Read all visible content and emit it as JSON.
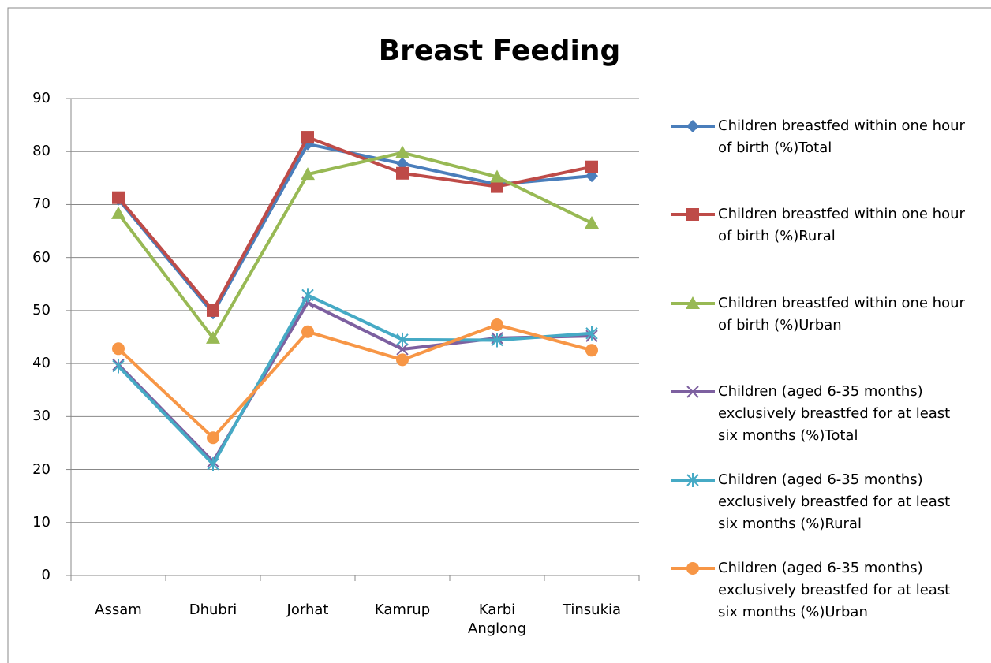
{
  "chart_data": {
    "type": "line",
    "title": "Breast Feeding",
    "categories": [
      "Assam",
      "Dhubri",
      "Jorhat",
      "Kamrup",
      "Karbi Anglong",
      "Tinsukia"
    ],
    "series": [
      {
        "name": "Children breastfed within one hour of birth (%)Total",
        "color": "#4a7ebb",
        "marker": "diamond",
        "values": [
          71,
          49.5,
          81.4,
          77.7,
          73.8,
          75.4
        ]
      },
      {
        "name": "Children breastfed within one hour of birth (%)Rural",
        "color": "#be4b48",
        "marker": "square",
        "values": [
          71.3,
          50,
          82.7,
          75.9,
          73.4,
          77.1
        ]
      },
      {
        "name": "Children breastfed within one hour of birth (%)Urban",
        "color": "#98b954",
        "marker": "triangle",
        "values": [
          68.3,
          44.8,
          75.7,
          79.8,
          75.2,
          66.5
        ]
      },
      {
        "name": "Children (aged 6-35 months) exclusively breastfed for at least six months (%)Total",
        "color": "#7d60a0",
        "marker": "x",
        "values": [
          39.8,
          21.5,
          51.5,
          42.7,
          44.8,
          45.2
        ]
      },
      {
        "name": "Children (aged 6-35 months) exclusively breastfed for at least six months (%)Rural",
        "color": "#46aac5",
        "marker": "star",
        "values": [
          39.5,
          21,
          52.9,
          44.5,
          44.4,
          45.7
        ]
      },
      {
        "name": "Children (aged 6-35 months) exclusively breastfed for at least six months (%)Urban",
        "color": "#f79646",
        "marker": "circle",
        "values": [
          42.8,
          26,
          46,
          40.7,
          47.3,
          42.5
        ]
      }
    ],
    "ylim": [
      0,
      90
    ],
    "yticks": [
      0,
      10,
      20,
      30,
      40,
      50,
      60,
      70,
      80,
      90
    ],
    "grid": true,
    "legend": "right"
  }
}
